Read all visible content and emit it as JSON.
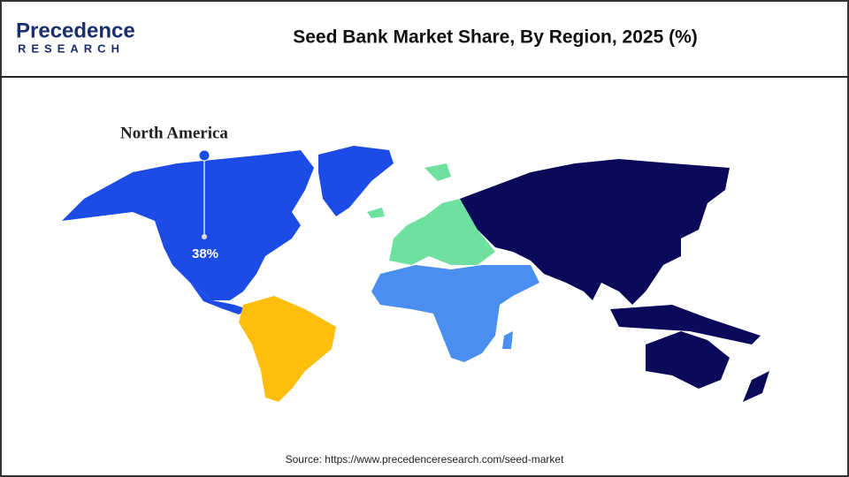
{
  "header": {
    "logo": {
      "name": "Precedence",
      "tagline": "RESEARCH"
    },
    "title": "Seed Bank Market Share, By Region, 2025 (%)"
  },
  "map": {
    "callouts": [
      {
        "region": "North America",
        "value": 38,
        "value_label": "38%"
      }
    ]
  },
  "source": "Source: https://www.precedenceresearch.com/seed-market"
}
